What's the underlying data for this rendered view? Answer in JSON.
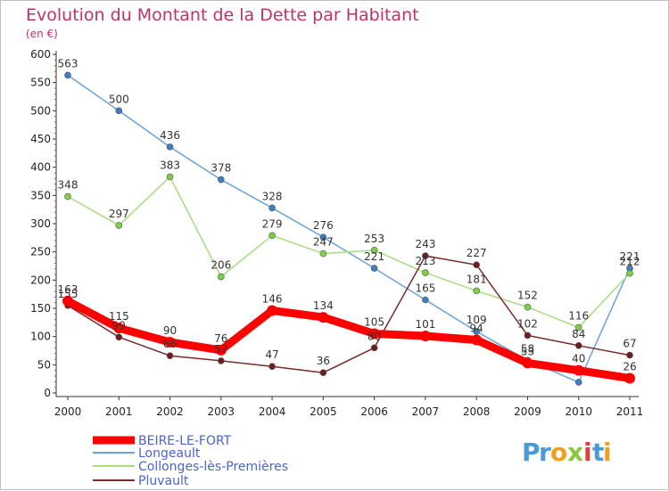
{
  "chart_data": {
    "type": "line",
    "title": "Evolution du Montant de la Dette par Habitant",
    "subtitle": "(en €)",
    "xlabel": "",
    "ylabel": "",
    "x": [
      "2000",
      "2001",
      "2002",
      "2003",
      "2004",
      "2005",
      "2006",
      "2007",
      "2008",
      "2009",
      "2010",
      "2011"
    ],
    "ylim": [
      0,
      600
    ],
    "yticks": [
      "0",
      "50",
      "100",
      "150",
      "200",
      "250",
      "300",
      "350",
      "400",
      "450",
      "500",
      "550",
      "600"
    ],
    "grid": false,
    "legend_position": "bottom-left",
    "series": [
      {
        "name": "Longeault",
        "color": "#6aa3d5",
        "marker": "#3d7ec4",
        "values": [
          563,
          500,
          436,
          378,
          328,
          276,
          221,
          165,
          109,
          58,
          19,
          221
        ],
        "labels": [
          "563",
          "500",
          "436",
          "378",
          "328",
          "276",
          "221",
          "165",
          "109",
          "58",
          "",
          "221"
        ]
      },
      {
        "name": "Collonges-lès-Premières",
        "color": "#a6dd7f",
        "marker": "#7fcf45",
        "values": [
          348,
          297,
          383,
          206,
          279,
          247,
          253,
          213,
          181,
          152,
          116,
          212
        ],
        "labels": [
          "348",
          "297",
          "383",
          "206",
          "279",
          "247",
          "253",
          "213",
          "181",
          "152",
          "116",
          "212"
        ]
      },
      {
        "name": "Pluvault",
        "color": "#7a2a2a",
        "marker": "#6b1f1f",
        "values": [
          155,
          99,
          66,
          57,
          47,
          36,
          80,
          243,
          227,
          102,
          84,
          67
        ],
        "labels": [
          "155",
          "99",
          "66",
          "57",
          "47",
          "36",
          "80",
          "243",
          "227",
          "102",
          "84",
          "67"
        ]
      },
      {
        "name": "BEIRE-LE-FORT",
        "color": "#ff0000",
        "marker": "#ff0000",
        "values": [
          163,
          115,
          90,
          76,
          146,
          134,
          105,
          101,
          94,
          53,
          40,
          26
        ],
        "labels": [
          "163",
          "115",
          "90",
          "76",
          "146",
          "134",
          "105",
          "101",
          "94",
          "53",
          "40",
          "26"
        ]
      }
    ]
  },
  "legend": {
    "items": [
      "BEIRE-LE-FORT",
      "Longeault",
      "Collonges-lès-Premières",
      "Pluvault"
    ]
  },
  "logo": {
    "text": "Proxiti"
  },
  "colors": {
    "title": "#c0306a",
    "legend_text": "#4a63d0"
  }
}
